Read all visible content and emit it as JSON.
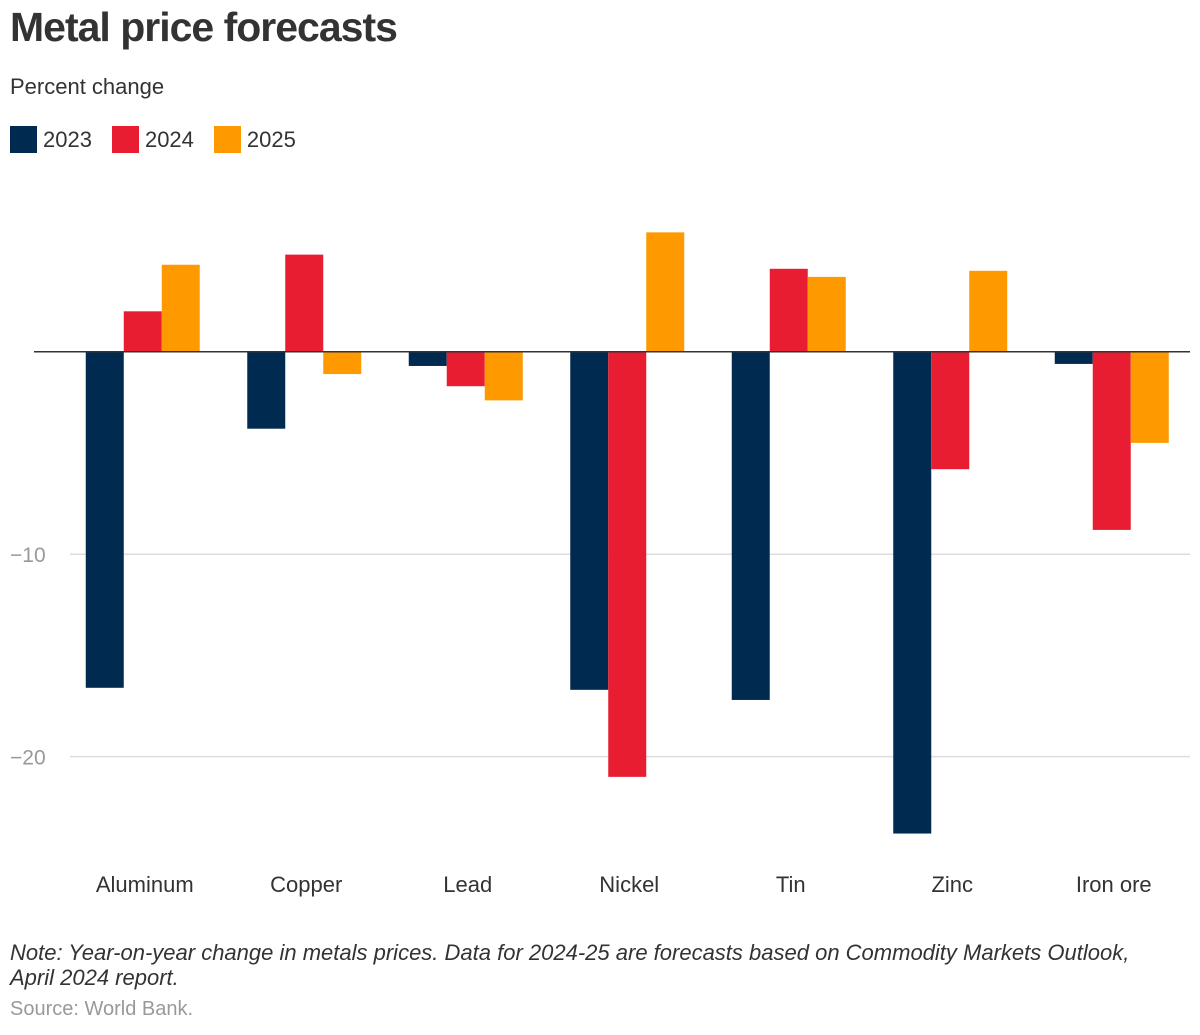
{
  "chart_data": {
    "type": "bar",
    "title": "Metal price forecasts",
    "subtitle": "Percent change",
    "categories": [
      "Aluminum",
      "Copper",
      "Lead",
      "Nickel",
      "Tin",
      "Zinc",
      "Iron ore"
    ],
    "series": [
      {
        "name": "2023",
        "color": "#002a4f",
        "values": [
          -16.6,
          -3.8,
          -0.7,
          -16.7,
          -17.2,
          -23.8,
          -0.6
        ]
      },
      {
        "name": "2024",
        "color": "#e91d31",
        "values": [
          2.0,
          4.8,
          -1.7,
          -21.0,
          4.1,
          -5.8,
          -8.8
        ]
      },
      {
        "name": "2025",
        "color": "#ff9900",
        "values": [
          4.3,
          -1.1,
          -2.4,
          5.9,
          3.7,
          4.0,
          -4.5
        ]
      }
    ],
    "yticks": [
      {
        "value": -10,
        "label": "−10"
      },
      {
        "value": -20,
        "label": "−20"
      }
    ],
    "ylim": [
      -25.7,
      7.4
    ],
    "xlabel": "",
    "ylabel": "",
    "grid": true,
    "legend": "top-left"
  },
  "note": "Note: Year-on-year change in metals prices. Data for 2024-25 are forecasts based on Commodity Markets Outlook, April 2024 report.",
  "source": "Source: World Bank."
}
